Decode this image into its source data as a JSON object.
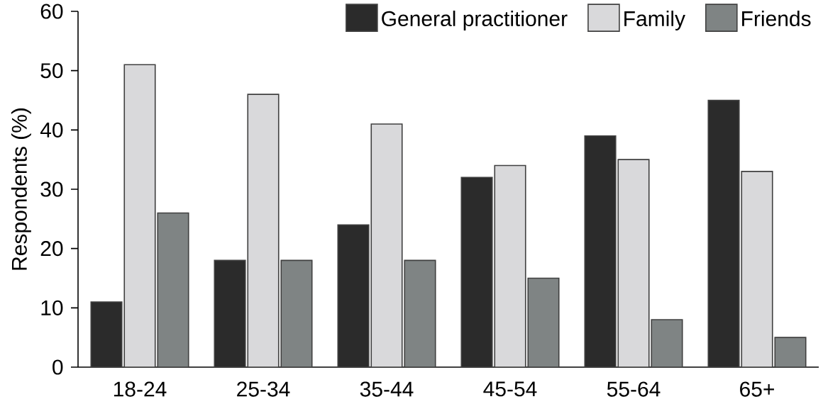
{
  "chart_data": {
    "type": "bar",
    "ylabel": "Respondents (%)",
    "categories": [
      "18-24",
      "25-34",
      "35-44",
      "45-54",
      "55-64",
      "65+"
    ],
    "series": [
      {
        "name": "General practitioner",
        "color": "#2b2b2b",
        "values": [
          11,
          18,
          24,
          32,
          39,
          45
        ]
      },
      {
        "name": "Family",
        "color": "#d9d9db",
        "values": [
          51,
          46,
          41,
          34,
          35,
          33
        ]
      },
      {
        "name": "Friends",
        "color": "#7f8484",
        "values": [
          26,
          18,
          18,
          15,
          8,
          5
        ]
      }
    ],
    "ylim": [
      0,
      60
    ],
    "yticks": [
      0,
      10,
      20,
      30,
      40,
      50,
      60
    ],
    "legend": "top right"
  }
}
